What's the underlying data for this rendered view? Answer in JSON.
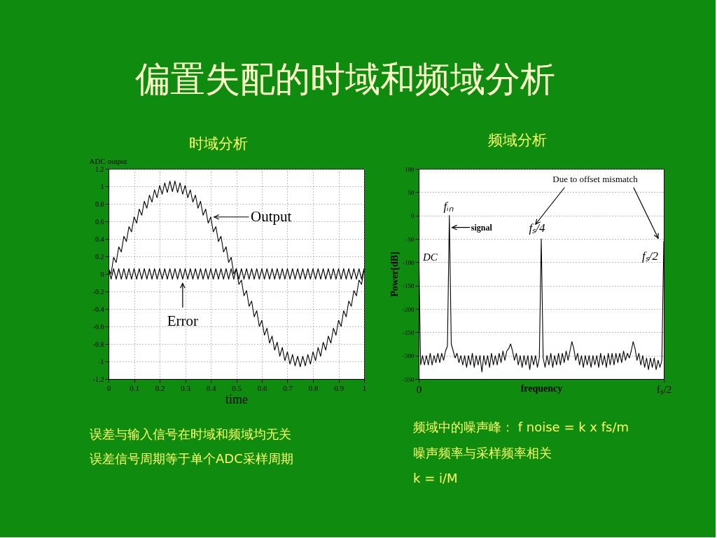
{
  "chart_data": [
    {
      "type": "other",
      "title": "偏置失配的时域和频域分析"
    },
    {
      "type": "line",
      "title": "时域分析",
      "xlabel": "time",
      "ylabel": "ADC output",
      "xlim": [
        0,
        1
      ],
      "xticks": [
        0,
        0.1,
        0.2,
        0.3,
        0.4,
        0.5,
        0.6,
        0.7,
        0.8,
        0.9,
        1
      ],
      "ylim": [
        -1.2,
        1.2
      ],
      "yticks": [
        -1.2,
        -1,
        -0.8,
        -0.6,
        -0.4,
        -0.2,
        0,
        0.2,
        0.4,
        0.6,
        0.8,
        1,
        1.2
      ],
      "grid": true,
      "x": [
        0,
        0.01,
        0.02,
        0.03,
        0.04,
        0.05,
        0.06,
        0.07,
        0.08,
        0.09,
        0.1,
        0.11,
        0.12,
        0.13,
        0.14,
        0.15,
        0.16,
        0.17,
        0.18,
        0.19,
        0.2,
        0.21,
        0.22,
        0.23,
        0.24,
        0.25,
        0.26,
        0.27,
        0.28,
        0.29,
        0.3,
        0.31,
        0.32,
        0.33,
        0.34,
        0.35,
        0.36,
        0.37,
        0.38,
        0.39,
        0.4,
        0.41,
        0.42,
        0.43,
        0.44,
        0.45,
        0.46,
        0.47,
        0.48,
        0.49,
        0.5,
        0.51,
        0.52,
        0.53,
        0.54,
        0.55,
        0.56,
        0.57,
        0.58,
        0.59,
        0.6,
        0.61,
        0.62,
        0.63,
        0.64,
        0.65,
        0.66,
        0.67,
        0.68,
        0.69,
        0.7,
        0.71,
        0.72,
        0.73,
        0.74,
        0.75,
        0.76,
        0.77,
        0.78,
        0.79,
        0.8,
        0.81,
        0.82,
        0.83,
        0.84,
        0.85,
        0.86,
        0.87,
        0.88,
        0.89,
        0.9,
        0.91,
        0.92,
        0.93,
        0.94,
        0.95,
        0.96,
        0.97,
        0.98,
        0.99,
        1
      ],
      "series": [
        {
          "name": "Output",
          "color": "#000000",
          "values": [
            0.06,
            0,
            0.19,
            0.13,
            0.31,
            0.25,
            0.43,
            0.37,
            0.54,
            0.48,
            0.65,
            0.58,
            0.74,
            0.67,
            0.83,
            0.75,
            0.9,
            0.82,
            0.96,
            0.87,
            1.01,
            0.91,
            1.04,
            0.93,
            1.06,
            0.94,
            1.06,
            0.93,
            1.04,
            0.91,
            1.01,
            0.87,
            0.96,
            0.82,
            0.9,
            0.75,
            0.83,
            0.67,
            0.74,
            0.58,
            0.65,
            0.48,
            0.54,
            0.37,
            0.43,
            0.25,
            0.31,
            0.13,
            0.19,
            0,
            0.06,
            -0.12,
            -0.07,
            -0.25,
            -0.19,
            -0.37,
            -0.31,
            -0.49,
            -0.42,
            -0.6,
            -0.53,
            -0.7,
            -0.62,
            -0.79,
            -0.71,
            -0.87,
            -0.78,
            -0.94,
            -0.84,
            -0.99,
            -0.89,
            -1.03,
            -0.92,
            -1.05,
            -0.94,
            -1.06,
            -0.94,
            -1.05,
            -0.92,
            -1.03,
            -0.89,
            -0.99,
            -0.84,
            -0.94,
            -0.78,
            -0.87,
            -0.71,
            -0.79,
            -0.62,
            -0.7,
            -0.53,
            -0.6,
            -0.42,
            -0.49,
            -0.31,
            -0.37,
            -0.19,
            -0.25,
            -0.07,
            -0.12,
            0.06
          ]
        },
        {
          "name": "Error",
          "color": "#000000",
          "values": [
            0.06,
            -0.06,
            0.06,
            -0.06,
            0.06,
            -0.06,
            0.06,
            -0.06,
            0.06,
            -0.06,
            0.06,
            -0.06,
            0.06,
            -0.06,
            0.06,
            -0.06,
            0.06,
            -0.06,
            0.06,
            -0.06,
            0.06,
            -0.06,
            0.06,
            -0.06,
            0.06,
            -0.06,
            0.06,
            -0.06,
            0.06,
            -0.06,
            0.06,
            -0.06,
            0.06,
            -0.06,
            0.06,
            -0.06,
            0.06,
            -0.06,
            0.06,
            -0.06,
            0.06,
            -0.06,
            0.06,
            -0.06,
            0.06,
            -0.06,
            0.06,
            -0.06,
            0.06,
            -0.06,
            0.06,
            -0.06,
            0.06,
            -0.06,
            0.06,
            -0.06,
            0.06,
            -0.06,
            0.06,
            -0.06,
            0.06,
            -0.06,
            0.06,
            -0.06,
            0.06,
            -0.06,
            0.06,
            -0.06,
            0.06,
            -0.06,
            0.06,
            -0.06,
            0.06,
            -0.06,
            0.06,
            -0.06,
            0.06,
            -0.06,
            0.06,
            -0.06,
            0.06,
            -0.06,
            0.06,
            -0.06,
            0.06,
            -0.06,
            0.06,
            -0.06,
            0.06,
            -0.06,
            0.06,
            -0.06,
            0.06,
            -0.06,
            0.06,
            -0.06,
            0.06,
            -0.06,
            0.06,
            -0.06,
            0.06
          ]
        }
      ],
      "annotations": [
        "误差与输入信号在时域和频域均无关",
        "误差信号周期等于单个ADC采样周期"
      ]
    },
    {
      "type": "line",
      "title": "频域分析",
      "xlabel": "frequency",
      "ylabel": "Power[dB]",
      "categories": [
        "0",
        null,
        null,
        null,
        null,
        null,
        null,
        null,
        null,
        null,
        null,
        null,
        null,
        null,
        null,
        null,
        null,
        null,
        null,
        null,
        null,
        null,
        null,
        null,
        null,
        null,
        null,
        null,
        null,
        null,
        null,
        null,
        null,
        null,
        null,
        null,
        null,
        null,
        null,
        null,
        null,
        null,
        null,
        null,
        null,
        null,
        null,
        null,
        null,
        null,
        null,
        null,
        null,
        null,
        null,
        null,
        null,
        null,
        null,
        null,
        null,
        null,
        null,
        null,
        null,
        null,
        null,
        null,
        null,
        null,
        null,
        null,
        null,
        null,
        null,
        null,
        null,
        null,
        null,
        null,
        null,
        null,
        null,
        null,
        null,
        null,
        null,
        null,
        null,
        null,
        null,
        null,
        null,
        null,
        null,
        null,
        null,
        null,
        null,
        null,
        null,
        null,
        null,
        null,
        null,
        null,
        null,
        null,
        null,
        null,
        null,
        null,
        null,
        null,
        null,
        null,
        null,
        null,
        null,
        null,
        null,
        null,
        null,
        null,
        null,
        null,
        null,
        null,
        "fₛ/2"
      ],
      "ylim": [
        -350,
        100
      ],
      "yticks": [
        -350,
        -300,
        -250,
        -200,
        -150,
        -100,
        -50,
        0,
        50,
        100
      ],
      "grid": "y",
      "color": "#000000",
      "values": [
        -65,
        -320,
        -300,
        -320,
        -300,
        -320,
        -295,
        -320,
        -300,
        -315,
        -295,
        -315,
        -295,
        -310,
        -290,
        -280,
        0,
        -275,
        -290,
        -305,
        -295,
        -315,
        -300,
        -320,
        -300,
        -325,
        -300,
        -320,
        -295,
        -325,
        -300,
        -320,
        -300,
        -335,
        -300,
        -320,
        -300,
        -325,
        -295,
        -320,
        -300,
        -320,
        -295,
        -315,
        -290,
        -310,
        -290,
        -285,
        -275,
        -290,
        -310,
        -295,
        -320,
        -300,
        -325,
        -300,
        -320,
        -300,
        -330,
        -300,
        -320,
        -300,
        -325,
        -305,
        -50,
        -305,
        -325,
        -300,
        -320,
        -295,
        -325,
        -300,
        -320,
        -295,
        -320,
        -295,
        -315,
        -290,
        -310,
        -290,
        -270,
        -285,
        -310,
        -295,
        -320,
        -300,
        -325,
        -300,
        -320,
        -300,
        -325,
        -300,
        -320,
        -300,
        -325,
        -295,
        -320,
        -300,
        -325,
        -295,
        -320,
        -295,
        -320,
        -295,
        -315,
        -295,
        -315,
        -290,
        -310,
        -295,
        -305,
        -290,
        -270,
        -285,
        -310,
        -295,
        -320,
        -300,
        -325,
        -305,
        -330,
        -305,
        -325,
        -305,
        -330,
        -310,
        -325,
        -310,
        -55
      ],
      "annotations": [
        {
          "text": "fᵢₙ",
          "y": 0
        },
        "signal",
        "fₛ/4",
        "Due to offset mismatch",
        "fₛ/2",
        "DC",
        "频域中的噪声峰： f noise = k x fs/m",
        "噪声频率与采样频率相关",
        "k = i/M"
      ]
    }
  ]
}
